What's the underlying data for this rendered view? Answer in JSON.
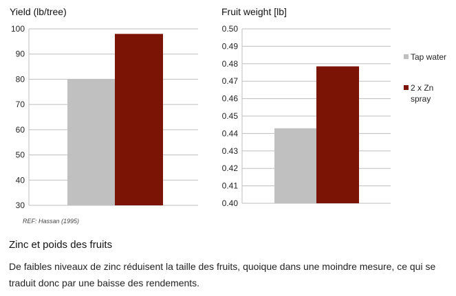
{
  "chart_data": [
    {
      "type": "bar",
      "title": "Yield (lb/tree)",
      "categories": [
        "Tap water",
        "2 x Zn spray"
      ],
      "values": [
        80,
        98
      ],
      "ylim": [
        30,
        100
      ],
      "yticks": [
        "30",
        "40",
        "50",
        "60",
        "70",
        "80",
        "90",
        "100"
      ],
      "grid": true
    },
    {
      "type": "bar",
      "title": "Fruit weight [lb]",
      "categories": [
        "Tap water",
        "2 x Zn spray"
      ],
      "values": [
        0.443,
        0.4785
      ],
      "ylim": [
        0.4,
        0.5
      ],
      "yticks": [
        "0.40",
        "0.41",
        "0.42",
        "0.43",
        "0.44",
        "0.45",
        "0.46",
        "0.47",
        "0.48",
        "0.49",
        "0.50"
      ],
      "grid": true
    }
  ],
  "legend": {
    "placement": "right",
    "items": [
      {
        "label": "Tap water",
        "color": "#c0c0c0"
      },
      {
        "label": "2 x Zn",
        "label2": "spray",
        "color": "#7b1405"
      }
    ]
  },
  "reference": "REF: Hassan (1995)",
  "heading": "Zinc et poids des fruits",
  "paragraph": "De faibles niveaux de zinc réduisent la taille des fruits, quoique dans une moindre mesure, ce qui se traduit donc par une baisse des rendements."
}
